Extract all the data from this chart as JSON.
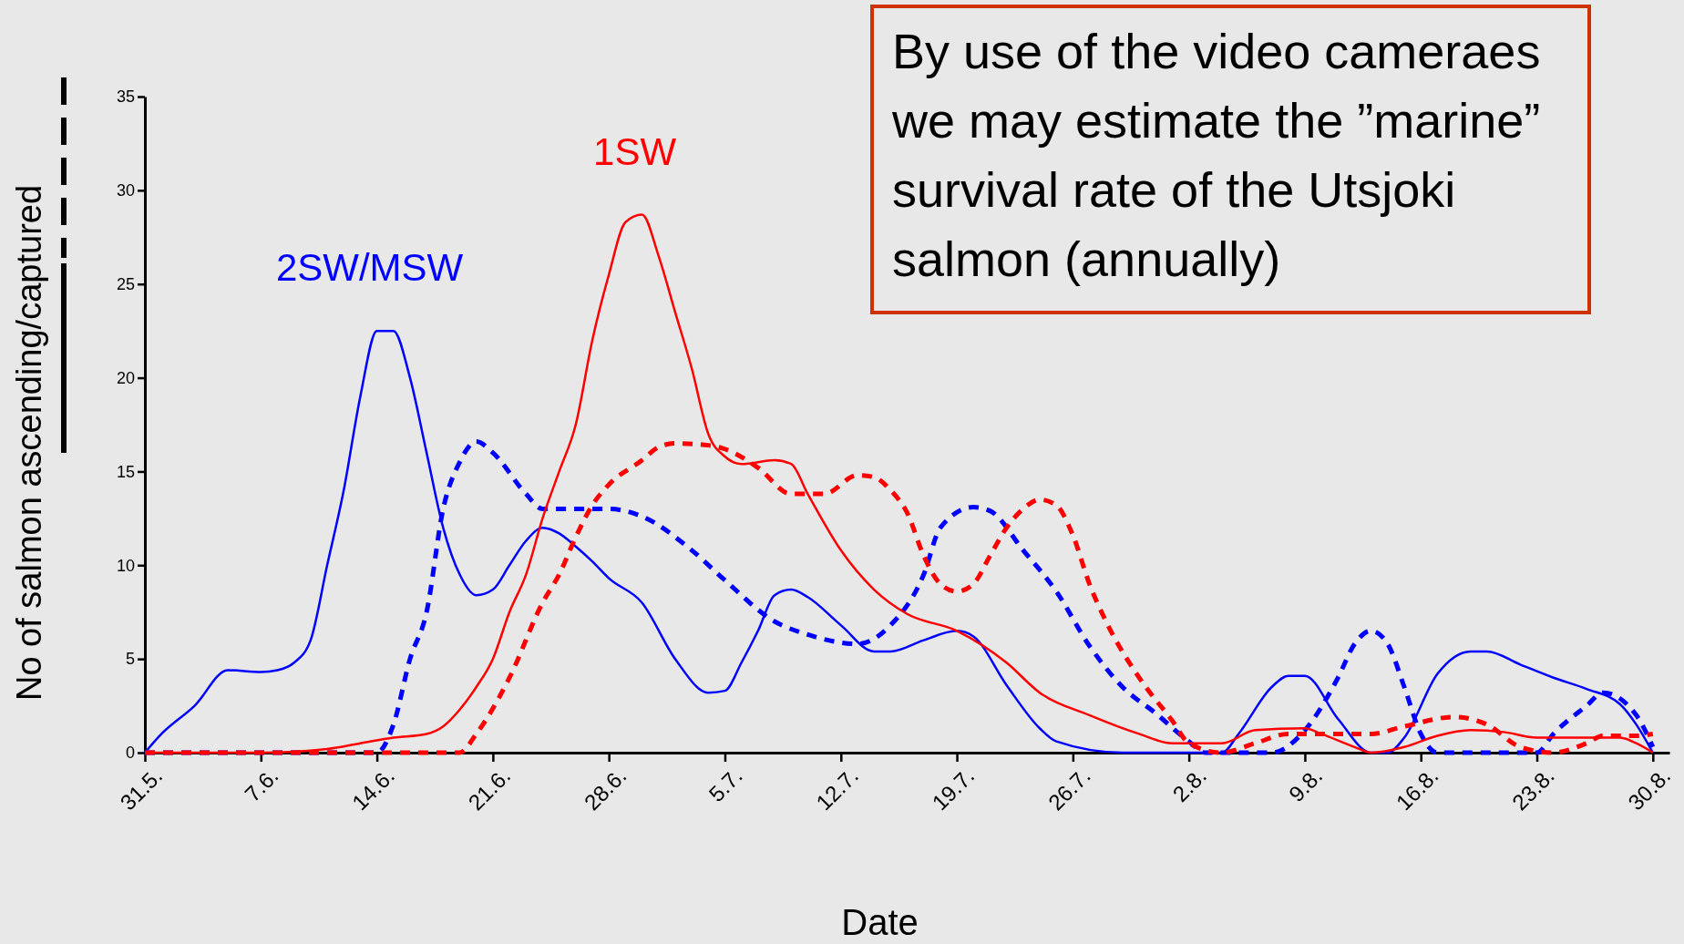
{
  "chart_data": {
    "type": "line",
    "xlabel": "Date",
    "ylabel": "No of salmon ascending/captured",
    "xlim": [
      "--05-31",
      "--08-31"
    ],
    "xticks": [
      {
        "value": "--05-31",
        "label": "31.5."
      },
      {
        "value": "--06-07",
        "label": "7.6."
      },
      {
        "value": "--06-14",
        "label": "14.6."
      },
      {
        "value": "--06-21",
        "label": "21.6."
      },
      {
        "value": "--06-28",
        "label": "28.6."
      },
      {
        "value": "--07-05",
        "label": "5.7."
      },
      {
        "value": "--07-12",
        "label": "12.7."
      },
      {
        "value": "--07-19",
        "label": "19.7."
      },
      {
        "value": "--07-26",
        "label": "26.7."
      },
      {
        "value": "--08-02",
        "label": "2.8."
      },
      {
        "value": "--08-09",
        "label": "9.8."
      },
      {
        "value": "--08-16",
        "label": "16.8."
      },
      {
        "value": "--08-23",
        "label": "23.8."
      },
      {
        "value": "--08-30",
        "label": "30.8."
      }
    ],
    "ylim": [
      0,
      35
    ],
    "yticks": [
      0,
      5,
      10,
      15,
      20,
      25,
      30,
      35
    ],
    "annotations": [
      "By use of the video cameraes we may estimate the ”marine” survival rate of the Utsjoki salmon (annually)"
    ],
    "series": [
      {
        "name": "2SW/MSW",
        "color": "#0000ff",
        "line_style": "solid",
        "x": [
          "--05-31",
          "--06-01",
          "--06-03",
          "--06-05",
          "--06-07",
          "--06-08",
          "--06-09",
          "--06-10",
          "--06-11",
          "--06-12",
          "--06-13",
          "--06-14",
          "--06-15",
          "--06-16",
          "--06-17",
          "--06-18",
          "--06-19",
          "--06-20",
          "--06-21",
          "--06-22",
          "--06-23",
          "--06-24",
          "--06-25",
          "--06-26",
          "--06-27",
          "--06-28",
          "--06-30",
          "--07-02",
          "--07-04",
          "--07-05",
          "--07-06",
          "--07-07",
          "--07-08",
          "--07-09",
          "--07-10",
          "--07-12",
          "--07-14",
          "--07-15",
          "--07-17",
          "--07-19",
          "--07-20",
          "--07-22",
          "--07-24",
          "--07-25",
          "--07-29",
          "--08-04",
          "--08-05",
          "--08-07",
          "--08-08",
          "--08-09",
          "--08-11",
          "--08-13",
          "--08-14",
          "--08-15",
          "--08-17",
          "--08-19",
          "--08-20",
          "--08-22",
          "--08-24",
          "--08-26",
          "--08-28",
          "--08-29",
          "--08-30"
        ],
        "values": [
          0,
          1,
          2.5,
          4.4,
          4.3,
          4.4,
          4.8,
          6,
          10,
          14,
          19,
          22.5,
          22.5,
          20,
          16,
          12,
          9.5,
          8.4,
          8.7,
          10,
          11.3,
          12,
          11.7,
          11,
          10.2,
          9.3,
          8,
          5,
          3.2,
          3.3,
          4.8,
          6.5,
          8.4,
          8.7,
          8.3,
          6.8,
          5.4,
          5.4,
          6,
          6.5,
          6.2,
          3.6,
          1.3,
          0.6,
          0,
          0,
          1,
          3.5,
          4.1,
          4.1,
          1.8,
          0,
          0,
          0.8,
          4.2,
          5.4,
          5.4,
          4.7,
          4,
          3.4,
          2.6,
          1.5,
          0
        ]
      },
      {
        "color": "#0000ff",
        "line_style": "dashed",
        "x": [
          "--05-31",
          "--06-14",
          "--06-15",
          "--06-16",
          "--06-17",
          "--06-18",
          "--06-19",
          "--06-20",
          "--06-21",
          "--06-23",
          "--06-24",
          "--06-26",
          "--06-28",
          "--06-30",
          "--07-03",
          "--07-05",
          "--07-08",
          "--07-10",
          "--07-13",
          "--07-15",
          "--07-17",
          "--07-18",
          "--07-20",
          "--07-21",
          "--07-23",
          "--07-25",
          "--07-27",
          "--07-29",
          "--07-31",
          "--08-02",
          "--08-03",
          "--08-07",
          "--08-09",
          "--08-11",
          "--08-12",
          "--08-13",
          "--08-14",
          "--08-15",
          "--08-16",
          "--08-17",
          "--08-23",
          "--08-24",
          "--08-26",
          "--08-27",
          "--08-29",
          "--08-30"
        ],
        "values": [
          0,
          0,
          1.5,
          5,
          7.5,
          13,
          15.5,
          16.6,
          16,
          13.8,
          13,
          13,
          13,
          12.6,
          10.8,
          9.2,
          7,
          6.3,
          5.8,
          6.8,
          9.5,
          12,
          13.1,
          12.9,
          10.8,
          8.6,
          5.7,
          3.5,
          2.1,
          0.6,
          0,
          0,
          1.2,
          4,
          5.8,
          6.5,
          5.8,
          3.5,
          1,
          0,
          0,
          1,
          2.5,
          3.2,
          2,
          0.3
        ]
      },
      {
        "name": "1SW",
        "color": "#ff0000",
        "line_style": "solid",
        "x": [
          "--05-31",
          "--06-07",
          "--06-11",
          "--06-13",
          "--06-15",
          "--06-17",
          "--06-18",
          "--06-19",
          "--06-20",
          "--06-21",
          "--06-22",
          "--06-23",
          "--06-24",
          "--06-25",
          "--06-26",
          "--06-27",
          "--06-28",
          "--06-29",
          "--06-30",
          "--07-01",
          "--07-02",
          "--07-03",
          "--07-04",
          "--07-05",
          "--07-06",
          "--07-08",
          "--07-09",
          "--07-10",
          "--07-12",
          "--07-14",
          "--07-16",
          "--07-19",
          "--07-22",
          "--07-24",
          "--07-27",
          "--07-30",
          "--08-01",
          "--08-04",
          "--08-06",
          "--08-09",
          "--08-10",
          "--08-12",
          "--08-13",
          "--08-15",
          "--08-17",
          "--08-19",
          "--08-21",
          "--08-23",
          "--08-26",
          "--08-28",
          "--08-29",
          "--08-30"
        ],
        "values": [
          0,
          0,
          0.2,
          0.5,
          0.8,
          1,
          1.4,
          2.3,
          3.5,
          5,
          7.5,
          9.5,
          12.5,
          15,
          17.5,
          22,
          25.5,
          28.3,
          28.7,
          26.5,
          23.5,
          20.5,
          17,
          15.8,
          15.4,
          15.6,
          15.4,
          13.8,
          10.8,
          8.7,
          7.4,
          6.5,
          4.8,
          3.2,
          2,
          1,
          0.5,
          0.5,
          1.2,
          1.3,
          1,
          0.3,
          0,
          0.3,
          0.9,
          1.2,
          1.1,
          0.8,
          0.8,
          0.8,
          0.5,
          0
        ]
      },
      {
        "color": "#ff0000",
        "line_style": "dashed",
        "x": [
          "--05-31",
          "--06-19",
          "--06-20",
          "--06-22",
          "--06-24",
          "--06-25",
          "--06-26",
          "--06-27",
          "--06-28",
          "--06-30",
          "--07-01",
          "--07-02",
          "--07-04",
          "--07-05",
          "--07-07",
          "--07-09",
          "--07-11",
          "--07-13",
          "--07-14",
          "--07-15",
          "--07-16",
          "--07-17",
          "--07-18",
          "--07-19",
          "--07-20",
          "--07-21",
          "--07-22",
          "--07-23",
          "--07-24",
          "--07-25",
          "--07-26",
          "--07-27",
          "--07-28",
          "--07-30",
          "--08-01",
          "--08-02",
          "--08-04",
          "--08-06",
          "--08-08",
          "--08-11",
          "--08-13",
          "--08-15",
          "--08-18",
          "--08-20",
          "--08-22",
          "--08-24",
          "--08-26",
          "--08-27",
          "--08-29",
          "--08-30"
        ],
        "values": [
          0,
          0,
          1,
          4,
          8,
          9.5,
          11.5,
          13.2,
          14.3,
          15.6,
          16.3,
          16.5,
          16.4,
          16.2,
          15.2,
          13.8,
          13.8,
          14.8,
          14.7,
          14,
          12.8,
          10.5,
          9,
          8.6,
          9,
          10.5,
          12,
          13,
          13.5,
          13.2,
          11.6,
          9,
          7,
          4,
          1.7,
          0.5,
          0,
          0.5,
          1,
          1,
          1,
          1.4,
          1.9,
          1.5,
          0.3,
          0,
          0.5,
          0.9,
          0.9,
          1
        ]
      }
    ]
  }
}
